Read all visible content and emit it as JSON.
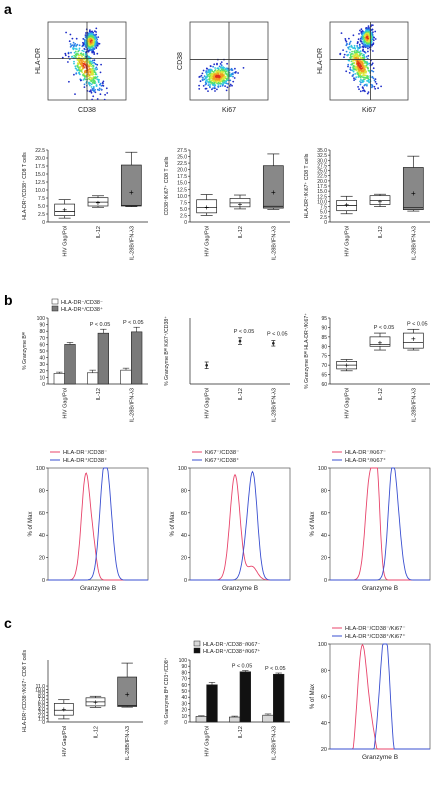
{
  "panel_labels": [
    "a",
    "b",
    "c"
  ],
  "chart_data": [
    {
      "id": "a-flow-1",
      "type": "scatter",
      "panel": "a",
      "xlabel": "CD38",
      "ylabel": "HLA-DR",
      "gate_x_frac": 0.5,
      "gate_y_frac": 0.47,
      "density_clusters": [
        {
          "cx": 0.48,
          "cy": 0.58,
          "rx": 0.12,
          "ry": 0.3,
          "angle": -30
        },
        {
          "cx": 0.55,
          "cy": 0.25,
          "rx": 0.07,
          "ry": 0.1,
          "angle": 0
        }
      ]
    },
    {
      "id": "a-flow-2",
      "type": "scatter",
      "panel": "a",
      "xlabel": "Ki67",
      "ylabel": "CD38",
      "gate_x_frac": 0.5,
      "gate_y_frac": 0.48,
      "density_clusters": [
        {
          "cx": 0.36,
          "cy": 0.7,
          "rx": 0.18,
          "ry": 0.12,
          "angle": -15
        }
      ]
    },
    {
      "id": "a-flow-3",
      "type": "scatter",
      "panel": "a",
      "xlabel": "Ki67",
      "ylabel": "HLA-DR",
      "gate_x_frac": 0.52,
      "gate_y_frac": 0.48,
      "density_clusters": [
        {
          "cx": 0.38,
          "cy": 0.55,
          "rx": 0.12,
          "ry": 0.28,
          "angle": -25
        },
        {
          "cx": 0.48,
          "cy": 0.2,
          "rx": 0.07,
          "ry": 0.1,
          "angle": 0
        }
      ]
    },
    {
      "id": "a-box-1",
      "type": "box",
      "panel": "a",
      "ylabel": "HLA-DR⁺/CD38⁺ CD8 T cells",
      "categories": [
        "HIV Gag/Pol",
        "IL-12",
        "IL-28B/IFN-λ3"
      ],
      "ylim": [
        0,
        22.5
      ],
      "yticks": [
        "0",
        "2.5",
        "5.0",
        "7.5",
        "10.0",
        "12.5",
        "15.0",
        "17.5",
        "20.0",
        "22.5"
      ],
      "boxes": [
        {
          "min": 1.2,
          "q1": 2.0,
          "median": 3.3,
          "q3": 5.6,
          "max": 7.0,
          "mean": 3.9,
          "fill": "#ffffff"
        },
        {
          "min": 4.6,
          "q1": 5.0,
          "median": 6.2,
          "q3": 7.6,
          "max": 8.2,
          "mean": 6.1,
          "fill": "#ffffff"
        },
        {
          "min": 4.8,
          "q1": 5.0,
          "median": 5.2,
          "q3": 17.8,
          "max": 21.8,
          "mean": 9.3,
          "fill": "#888888"
        }
      ]
    },
    {
      "id": "a-box-2",
      "type": "box",
      "panel": "a",
      "ylabel": "CD38⁺/Ki67⁺ CD8 T cells",
      "categories": [
        "HIV Gag/Pol",
        "IL-12",
        "IL-28B/IFN-λ3"
      ],
      "ylim": [
        0,
        27.5
      ],
      "yticks": [
        "0",
        "2.5",
        "5.0",
        "7.5",
        "10.0",
        "12.5",
        "15.0",
        "17.5",
        "20.0",
        "22.5",
        "25.0",
        "27.5"
      ],
      "boxes": [
        {
          "min": 2.5,
          "q1": 3.5,
          "median": 5.5,
          "q3": 8.5,
          "max": 10.5,
          "mean": 5.8,
          "fill": "#ffffff"
        },
        {
          "min": 5.0,
          "q1": 5.8,
          "median": 7.3,
          "q3": 9.0,
          "max": 10.3,
          "mean": 6.9,
          "fill": "#ffffff"
        },
        {
          "min": 4.8,
          "q1": 5.3,
          "median": 6.0,
          "q3": 21.5,
          "max": 26.0,
          "mean": 11.5,
          "fill": "#888888"
        }
      ]
    },
    {
      "id": "a-box-3",
      "type": "box",
      "panel": "a",
      "ylabel": "HLA-DR⁺/Ki67⁺ CD8 T cells",
      "categories": [
        "HIV Gag/Pol",
        "IL-12",
        "IL-28B/IFN-λ3"
      ],
      "ylim": [
        0,
        35
      ],
      "yticks": [
        "0",
        "2.5",
        "5.0",
        "7.5",
        "10.0",
        "12.5",
        "15.0",
        "17.5",
        "20.0",
        "22.5",
        "25.0",
        "27.5",
        "30.0",
        "32.5",
        "35.0"
      ],
      "boxes": [
        {
          "min": 4.0,
          "q1": 5.5,
          "median": 8.0,
          "q3": 10.5,
          "max": 12.5,
          "mean": 8.4,
          "fill": "#ffffff"
        },
        {
          "min": 7.5,
          "q1": 8.5,
          "median": 10.5,
          "q3": 12.8,
          "max": 13.5,
          "mean": 10.0,
          "fill": "#ffffff"
        },
        {
          "min": 5.3,
          "q1": 6.0,
          "median": 7.0,
          "q3": 26.5,
          "max": 32.0,
          "mean": 14.0,
          "fill": "#888888"
        }
      ]
    },
    {
      "id": "b-bar",
      "type": "bar",
      "panel": "b",
      "ylabel": "% Granzyme Bᴴᴵ",
      "categories": [
        "HIV Gag/Pol",
        "IL-12",
        "IL-28B/IFN-λ3"
      ],
      "ylim": [
        0,
        100
      ],
      "yticks": [
        "0",
        "10",
        "20",
        "30",
        "40",
        "50",
        "60",
        "70",
        "80",
        "90",
        "100"
      ],
      "legend": [
        "HLA-DR⁻/CD38⁻",
        "HLA-DR⁺/CD38⁺"
      ],
      "series": [
        {
          "name": "HLA-DR⁻/CD38⁻",
          "fill": "#ffffff",
          "values": [
            16,
            17,
            21
          ],
          "errors": [
            2,
            4,
            3
          ]
        },
        {
          "name": "HLA-DR⁺/CD38⁺",
          "fill": "#7a7a7a",
          "values": [
            60,
            77,
            79
          ],
          "errors": [
            3,
            6,
            7
          ]
        }
      ],
      "annotations": [
        "",
        "P < 0.05",
        "P < 0.05"
      ]
    },
    {
      "id": "b-mean",
      "type": "scatter",
      "panel": "b",
      "ylabel": "% Granzyme Bᴴᴵ Ki67⁺/CD38⁺",
      "categories": [
        "HIV Gag/Pol",
        "IL-12",
        "IL-28B/IFN-λ3"
      ],
      "ylim": [
        40,
        100
      ],
      "values": [
        57,
        79,
        77
      ],
      "errors": [
        3,
        3,
        2.5
      ],
      "annotations": [
        "",
        "P < 0.05",
        "P < 0.05"
      ]
    },
    {
      "id": "b-box",
      "type": "box",
      "panel": "b",
      "ylabel": "% Granzyme Bᴴᴵ HLA-DR⁺/Ki67⁺",
      "categories": [
        "HIV Gag/Pol",
        "IL-12",
        "IL-28B/IFN-λ3"
      ],
      "ylim": [
        60,
        95
      ],
      "yticks": [
        "60",
        "65",
        "70",
        "75",
        "80",
        "85",
        "90",
        "95"
      ],
      "boxes": [
        {
          "min": 67,
          "q1": 68,
          "median": 70,
          "q3": 72,
          "max": 73,
          "mean": 70,
          "fill": "#ffffff"
        },
        {
          "min": 78,
          "q1": 80,
          "median": 81,
          "q3": 85,
          "max": 87,
          "mean": 82,
          "fill": "#ffffff"
        },
        {
          "min": 78,
          "q1": 79,
          "median": 82,
          "q3": 87,
          "max": 89,
          "mean": 84,
          "fill": "#ffffff"
        }
      ],
      "annotations": [
        "",
        "P < 0.05",
        "P < 0.05"
      ]
    },
    {
      "id": "b-hist-1",
      "type": "line",
      "panel": "b",
      "xlabel": "Granzyme B",
      "ylabel": "% of Max",
      "ylim": [
        0,
        100
      ],
      "yticks": [
        "0",
        "20",
        "40",
        "60",
        "80",
        "100"
      ],
      "legend": [
        "HLA-DR⁻/CD38⁻",
        "HLA-DR⁺/CD38⁺"
      ],
      "series": [
        {
          "name": "HLA-DR⁻/CD38⁻",
          "color": "#e8456b",
          "peaks": [
            [
              0.38,
              95,
              0.045
            ],
            [
              0.46,
              18,
              0.03
            ]
          ]
        },
        {
          "name": "HLA-DR⁺/CD38⁺",
          "color": "#3a4fd0",
          "peaks": [
            [
              0.56,
              92,
              0.045
            ],
            [
              0.62,
              40,
              0.04
            ]
          ]
        }
      ]
    },
    {
      "id": "b-hist-2",
      "type": "line",
      "panel": "b",
      "xlabel": "Granzyme B",
      "ylabel": "% of Max",
      "ylim": [
        0,
        100
      ],
      "yticks": [
        "0",
        "20",
        "40",
        "60",
        "80",
        "100"
      ],
      "legend": [
        "Ki67⁻/CD38⁻",
        "Ki67⁺/CD38⁺"
      ],
      "series": [
        {
          "name": "Ki67⁻/CD38⁻",
          "color": "#e8456b",
          "peaks": [
            [
              0.45,
              94,
              0.05
            ],
            [
              0.62,
              12,
              0.05
            ]
          ]
        },
        {
          "name": "Ki67⁺/CD38⁺",
          "color": "#3a4fd0",
          "peaks": [
            [
              0.63,
              92,
              0.045
            ],
            [
              0.56,
              20,
              0.04
            ]
          ]
        }
      ]
    },
    {
      "id": "b-hist-3",
      "type": "line",
      "panel": "b",
      "xlabel": "Granzyme B",
      "ylabel": "% of Max",
      "ylim": [
        0,
        100
      ],
      "yticks": [
        "0",
        "20",
        "40",
        "60",
        "80",
        "100"
      ],
      "legend": [
        "HLA-DR⁻/Ki67⁻",
        "HLA-DR⁺/Ki67⁺"
      ],
      "series": [
        {
          "name": "HLA-DR⁻/Ki67⁻",
          "color": "#e8456b",
          "peaks": [
            [
              0.4,
              92,
              0.045
            ],
            [
              0.47,
              80,
              0.03
            ]
          ]
        },
        {
          "name": "HLA-DR⁺/Ki67⁺",
          "color": "#3a4fd0",
          "peaks": [
            [
              0.62,
              90,
              0.04
            ],
            [
              0.68,
              40,
              0.04
            ]
          ]
        }
      ]
    },
    {
      "id": "c-box",
      "type": "box",
      "panel": "c",
      "ylabel": "HLA-DR⁺/CD38⁺/Ki67⁺ CD8 T cells",
      "categories": [
        "HIV Gag/Pol",
        "IL-12",
        "IL-28B/IFN-λ3"
      ],
      "ylim": [
        0,
        20
      ],
      "yticks": [
        "0",
        "1.0",
        "2.0",
        "3.0",
        "4.0",
        "5.0",
        "6.0",
        "7.0",
        "8.0",
        "9.0",
        "10.0",
        "11.0"
      ],
      "yticks_max": 11,
      "boxes": [
        {
          "min": 1.0,
          "q1": 2.2,
          "median": 3.8,
          "q3": 6.0,
          "max": 7.2,
          "mean": 4.2,
          "fill": "#ffffff"
        },
        {
          "min": 4.7,
          "q1": 5.2,
          "median": 6.5,
          "q3": 7.8,
          "max": 8.3,
          "mean": 6.4,
          "fill": "#ffffff"
        },
        {
          "min": 4.8,
          "q1": 5.0,
          "median": 5.3,
          "q3": 14.5,
          "max": 19.0,
          "mean": 9.0,
          "fill": "#888888"
        }
      ]
    },
    {
      "id": "c-bar",
      "type": "bar",
      "panel": "c",
      "ylabel": "% Granzyme Bᴴᴵ CD3⁺/CD8⁺",
      "categories": [
        "HIV Gag/Pol",
        "IL-12",
        "IL-28B/IFN-λ3"
      ],
      "ylim": [
        0,
        100
      ],
      "yticks": [
        "0",
        "10",
        "20",
        "30",
        "40",
        "50",
        "60",
        "70",
        "80",
        "90",
        "100"
      ],
      "legend": [
        "HLA-DR⁻/CD38⁻/Ki67⁻",
        "HLA-DR⁺/CD38⁺/Ki67⁺"
      ],
      "series": [
        {
          "name": "HLA-DR⁻/CD38⁻/Ki67⁻",
          "fill": "#d8d8d8",
          "values": [
            9,
            8,
            11
          ],
          "errors": [
            1,
            1.5,
            2
          ]
        },
        {
          "name": "HLA-DR⁺/CD38⁺/Ki67⁺",
          "fill": "#111111",
          "values": [
            60,
            81,
            77
          ],
          "errors": [
            4,
            2,
            2
          ]
        }
      ],
      "annotations": [
        "",
        "P < 0.05",
        "P < 0.05"
      ]
    },
    {
      "id": "c-hist",
      "type": "line",
      "panel": "c",
      "xlabel": "Granzyme B",
      "ylabel": "% of Max",
      "ylim": [
        20,
        100
      ],
      "yticks": [
        "20",
        "40",
        "60",
        "80",
        "100"
      ],
      "legend": [
        "HLA-DR⁻/CD38⁻/Ki67⁻",
        "HLA-DR⁺/CD38⁺/Ki67⁺"
      ],
      "series": [
        {
          "name": "HLA-DR⁻/CD38⁻/Ki67⁻",
          "color": "#e8456b",
          "peaks": [
            [
              0.32,
              95,
              0.05
            ],
            [
              0.42,
              30,
              0.05
            ]
          ]
        },
        {
          "name": "HLA-DR⁺/CD38⁺/Ki67⁺",
          "color": "#3a4fd0",
          "peaks": [
            [
              0.56,
              92,
              0.045
            ],
            [
              0.5,
              35,
              0.05
            ]
          ]
        }
      ]
    }
  ]
}
